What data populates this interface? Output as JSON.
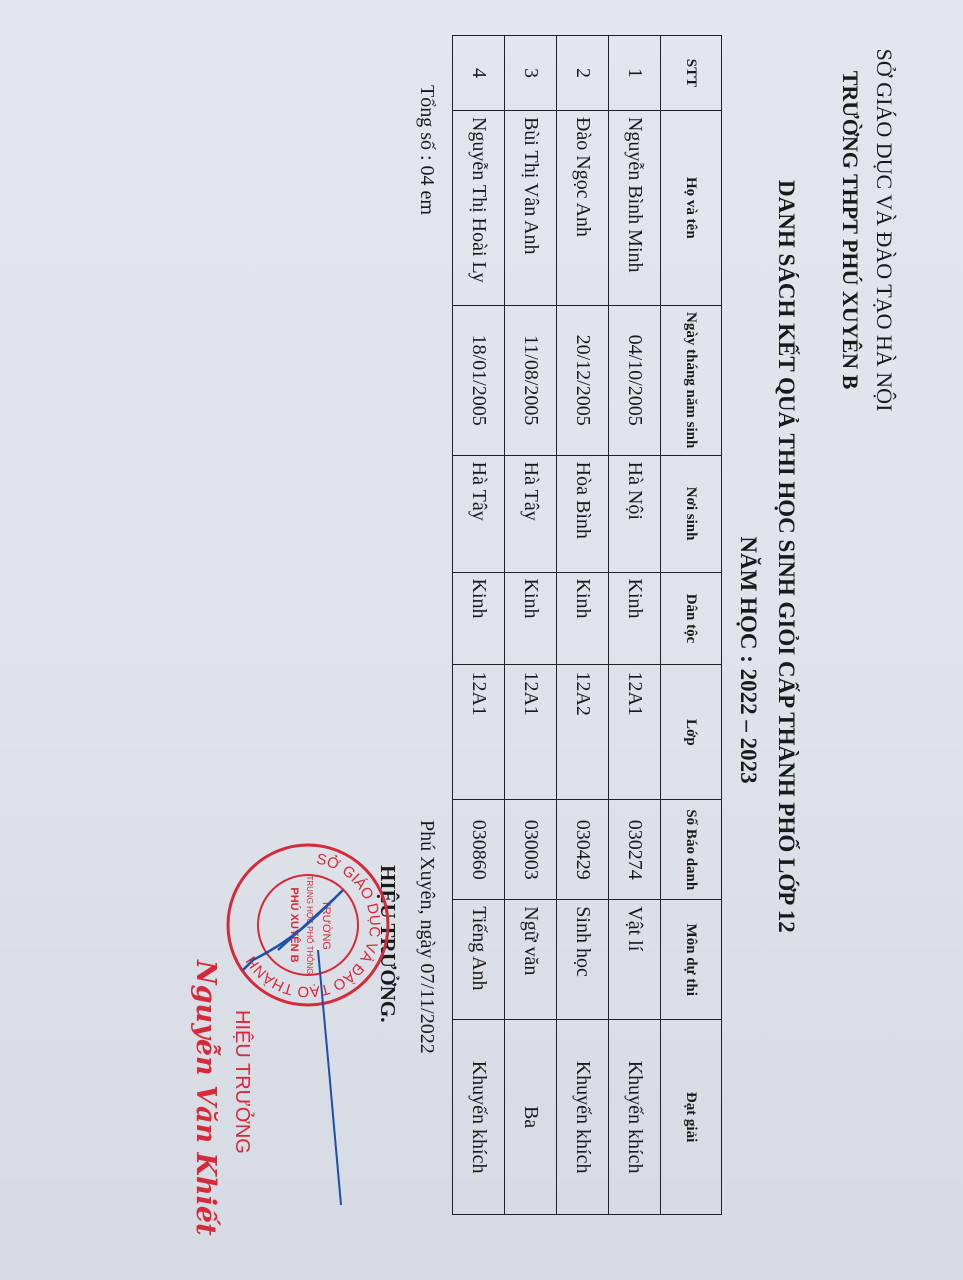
{
  "header": {
    "department": "SỞ GIÁO DỤC VÀ ĐÀO TẠO HÀ NỘI",
    "school": "TRƯỜNG THPT PHÚ XUYÊN B"
  },
  "title": {
    "main": "DANH SÁCH KẾT QUẢ THI HỌC SINH GIỎI CẤP THÀNH PHỐ LỚP 12",
    "year": "NĂM HỌC : 2022 – 2023"
  },
  "table": {
    "columns": [
      "STT",
      "Họ và tên",
      "Ngày tháng năm sinh",
      "Nơi sinh",
      "Dân tộc",
      "Lớp",
      "Số Báo danh",
      "Môn dự thi",
      "Đạt giải"
    ],
    "rows": [
      [
        "1",
        "Nguyễn Bình Minh",
        "04/10/2005",
        "Hà Nội",
        "Kinh",
        "12A1",
        "030274",
        "Vật lí",
        "Khuyến khích"
      ],
      [
        "2",
        "Đào Ngọc Anh",
        "20/12/2005",
        "Hòa Bình",
        "Kinh",
        "12A2",
        "030429",
        "Sinh học",
        "Khuyến khích"
      ],
      [
        "3",
        "Bùi Thị Vân Anh",
        "11/08/2005",
        "Hà Tây",
        "Kinh",
        "12A1",
        "030003",
        "Ngữ văn",
        "Ba"
      ],
      [
        "4",
        "Nguyễn Thị Hoài Ly",
        "18/01/2005",
        "Hà Tây",
        "Kinh",
        "12A1",
        "030860",
        "Tiếng Anh",
        "Khuyến khích"
      ]
    ]
  },
  "footer": {
    "total": "Tổng số : 04 em",
    "place_date": "Phú Xuyên, ngày 07/11/2022",
    "signer_title": "HIỆU TRƯỞNG."
  },
  "stamp": {
    "ring": "SỞ GIÁO DỤC VÀ ĐÀO TẠO THÀNH",
    "line1": "TRƯỜNG",
    "line2": "TRUNG HỌC PHỔ THÔNG",
    "line3": "PHÚ XUYÊN B",
    "color": "#d42a3a"
  },
  "signature": {
    "title": "HIỆU TRƯỞNG",
    "name": "Nguyễn Văn Khiết",
    "ink": "#1f4fa8"
  }
}
